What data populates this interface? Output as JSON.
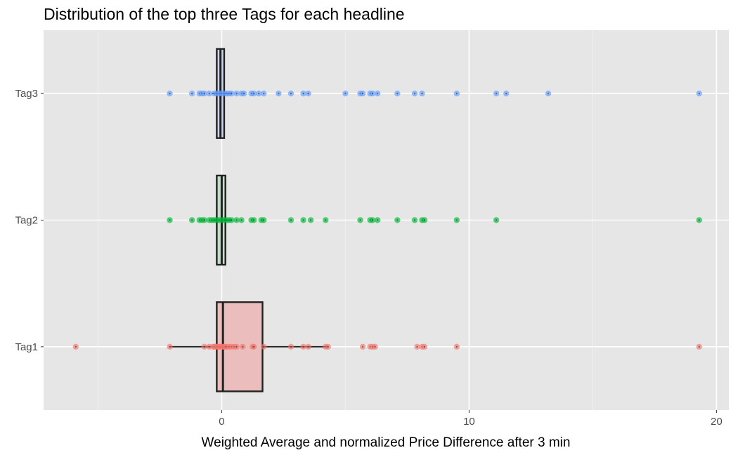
{
  "chart_data": {
    "type": "boxplot",
    "title": "Distribution of the top three Tags for each headline",
    "xlabel": "Weighted Average and normalized Price Difference after 3 min",
    "ylabel": "",
    "xlim": [
      -7.2,
      20.5
    ],
    "x_ticks": [
      0,
      10,
      20
    ],
    "x_minor_ticks": [
      -5,
      5,
      15
    ],
    "categories": [
      "Tag1",
      "Tag2",
      "Tag3"
    ],
    "grid": true,
    "legend": "none",
    "panel_background": "#e6e6e6",
    "grid_color": "#ffffff",
    "series": [
      {
        "category": "Tag1",
        "color": "#f8766d",
        "fill": "#ebbebd",
        "box": {
          "q1": -0.2,
          "median": 0.05,
          "q3": 1.65,
          "whisker_low": -2.1,
          "whisker_high": 4.3
        },
        "points": [
          -5.9,
          -2.1,
          -0.7,
          -0.5,
          -0.35,
          -0.3,
          -0.25,
          -0.2,
          -0.15,
          -0.1,
          -0.05,
          0,
          0.05,
          0.1,
          0.15,
          0.2,
          0.3,
          0.4,
          0.5,
          0.6,
          0.85,
          1.25,
          1.3,
          1.7,
          2.8,
          3.3,
          3.5,
          4.2,
          4.3,
          5.7,
          6.0,
          6.1,
          6.2,
          7.9,
          8.1,
          8.2,
          9.5,
          19.3
        ]
      },
      {
        "category": "Tag2",
        "color": "#00ba38",
        "fill": "#bfe0c4",
        "box": {
          "q1": -0.2,
          "median": 0.0,
          "q3": 0.15,
          "whisker_low": -0.4,
          "whisker_high": 0.4
        },
        "points": [
          -2.1,
          -1.2,
          -0.9,
          -0.8,
          -0.7,
          -0.5,
          -0.4,
          -0.3,
          -0.2,
          -0.1,
          0,
          0.1,
          0.2,
          0.3,
          0.4,
          0.6,
          0.8,
          1.2,
          1.3,
          1.6,
          1.7,
          2.8,
          3.3,
          3.6,
          4.2,
          5.6,
          6.0,
          6.1,
          6.3,
          7.1,
          7.8,
          8.1,
          8.2,
          9.5,
          11.1,
          19.3
        ]
      },
      {
        "category": "Tag3",
        "color": "#619cff",
        "fill": "#c8d3f0",
        "box": {
          "q1": -0.2,
          "median": -0.05,
          "q3": 0.1,
          "whisker_low": -0.4,
          "whisker_high": 0.4
        },
        "points": [
          -2.1,
          -1.2,
          -0.9,
          -0.8,
          -0.7,
          -0.5,
          -0.3,
          -0.2,
          -0.1,
          0,
          0.1,
          0.2,
          0.3,
          0.4,
          0.6,
          0.8,
          0.9,
          1.2,
          1.3,
          1.5,
          1.7,
          2.3,
          2.8,
          3.3,
          3.5,
          5.0,
          5.6,
          5.7,
          6.0,
          6.1,
          6.3,
          7.1,
          7.8,
          8.1,
          9.5,
          11.1,
          11.5,
          13.2,
          19.3
        ]
      }
    ]
  }
}
